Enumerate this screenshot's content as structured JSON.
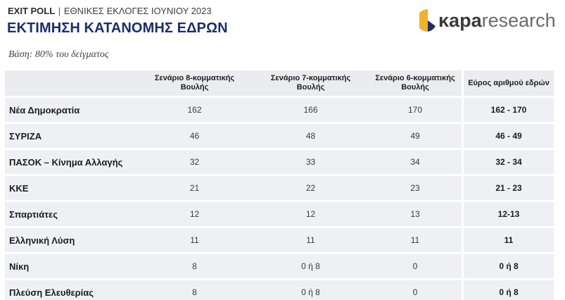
{
  "header": {
    "kicker_strong": "EXIT POLL",
    "kicker_sep": "|",
    "kicker_light": "ΕΘΝΙΚΕΣ ΕΚΛΟΓΕΣ ΙΟΥΝΙΟΥ 2023",
    "title": "ΕΚΤΙΜΗΣΗ ΚΑΤΑΝΟΜΗΣ ΕΔΡΩΝ"
  },
  "logo": {
    "part1": "κapa",
    "part2": "research",
    "icon": "kapa-logo-icon",
    "colors": {
      "yellow": "#f2b12b",
      "blue": "#1b2e6b"
    }
  },
  "subtitle": "Βάση: 80% του δείγματος",
  "table": {
    "columns": [
      "",
      "Σενάριο 8-κομματικής Βουλής",
      "Σενάριο 7-κομματικής Βουλής",
      "Σενάριο 6-κομματικής Βουλής",
      "Εύρος αριθμού εδρών"
    ],
    "rows": [
      {
        "party": "Νέα Δημοκρατία",
        "s8": "162",
        "s7": "166",
        "s6": "170",
        "range": "162 - 170"
      },
      {
        "party": "ΣΥΡΙΖΑ",
        "s8": "46",
        "s7": "48",
        "s6": "49",
        "range": "46 - 49"
      },
      {
        "party": "ΠΑΣΟΚ – Κίνημα Αλλαγής",
        "s8": "32",
        "s7": "33",
        "s6": "34",
        "range": "32 - 34"
      },
      {
        "party": "ΚΚΕ",
        "s8": "21",
        "s7": "22",
        "s6": "23",
        "range": "21 - 23"
      },
      {
        "party": "Σπαρτιάτες",
        "s8": "12",
        "s7": "12",
        "s6": "13",
        "range": "12-13"
      },
      {
        "party": "Ελληνική Λύση",
        "s8": "11",
        "s7": "11",
        "s6": "11",
        "range": "11"
      },
      {
        "party": "Νίκη",
        "s8": "8",
        "s7": "0 ή 8",
        "s6": "0",
        "range": "0 ή 8"
      },
      {
        "party": "Πλεύση Ελευθερίας",
        "s8": "8",
        "s7": "0 ή 8",
        "s6": "0",
        "range": "0 ή 8"
      }
    ]
  }
}
